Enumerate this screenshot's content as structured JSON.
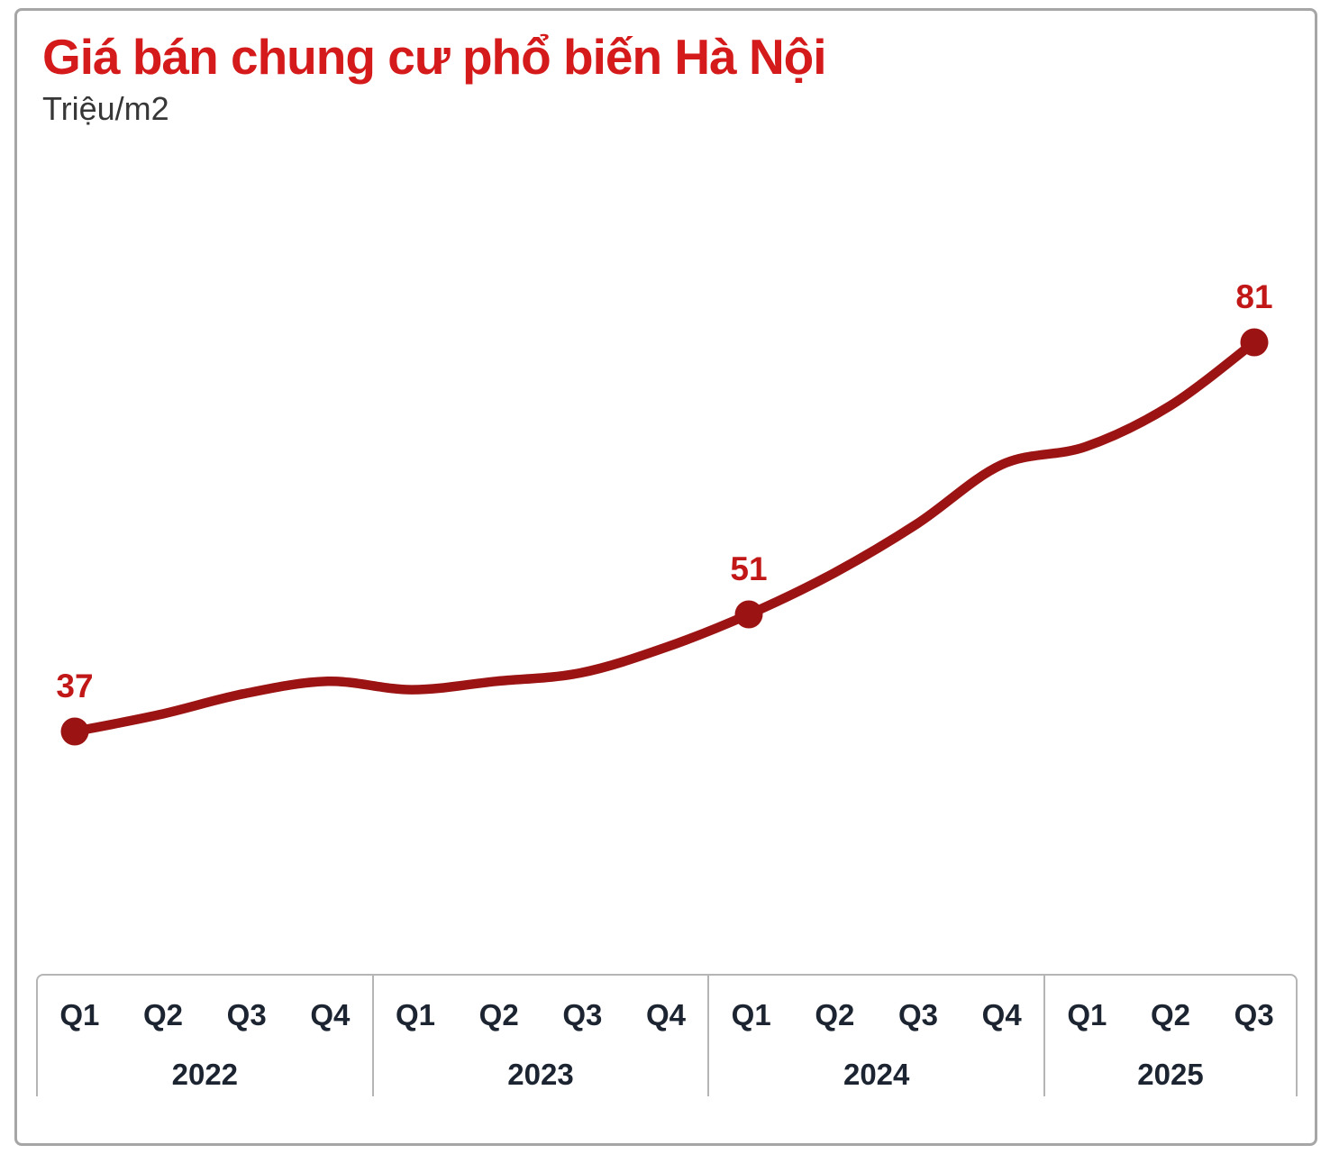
{
  "chart_data": {
    "type": "line",
    "title": "Giá bán chung cư phổ biến Hà Nội",
    "unit": "Triệu/m2",
    "x": [
      "Q1 2022",
      "Q2 2022",
      "Q3 2022",
      "Q4 2022",
      "Q1 2023",
      "Q2 2023",
      "Q3 2023",
      "Q4 2023",
      "Q1 2024",
      "Q2 2024",
      "Q3 2024",
      "Q4 2024",
      "Q1 2025",
      "Q2 2025",
      "Q3 2025"
    ],
    "values": [
      37,
      39,
      41.5,
      43,
      42,
      43,
      44,
      47,
      51,
      55.5,
      61,
      67.5,
      69.5,
      74,
      81
    ],
    "labeled_points": [
      {
        "x": "Q1 2022",
        "index": 0,
        "value": 37
      },
      {
        "x": "Q1 2024",
        "index": 8,
        "value": 51
      },
      {
        "x": "Q3 2025",
        "index": 14,
        "value": 81
      }
    ],
    "line_color": "#9c1313",
    "marker_color": "#9c1313",
    "label_color": "#c21717",
    "axis_groups": [
      {
        "year": "2022",
        "quarters": [
          "Q1",
          "Q2",
          "Q3",
          "Q4"
        ]
      },
      {
        "year": "2023",
        "quarters": [
          "Q1",
          "Q2",
          "Q3",
          "Q4"
        ]
      },
      {
        "year": "2024",
        "quarters": [
          "Q1",
          "Q2",
          "Q3",
          "Q4"
        ]
      },
      {
        "year": "2025",
        "quarters": [
          "Q1",
          "Q2",
          "Q3"
        ]
      }
    ],
    "legend": null,
    "grid": false,
    "ylim": [
      35,
      85
    ]
  }
}
